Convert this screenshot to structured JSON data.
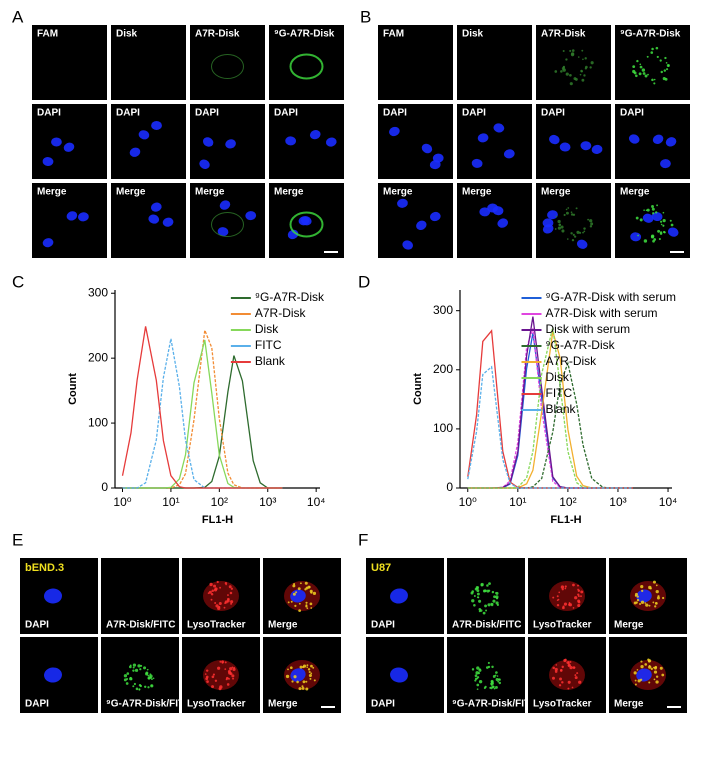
{
  "panels": [
    {
      "label": "A",
      "rows": [
        [
          "FAM",
          "Disk",
          "A7R-Disk",
          "⁹G-A7R-Disk"
        ],
        [
          "DAPI",
          "DAPI",
          "DAPI",
          "DAPI"
        ],
        [
          "Merge",
          "Merge",
          "Merge",
          "Merge"
        ]
      ]
    },
    {
      "label": "B",
      "rows": [
        [
          "FAM",
          "Disk",
          "A7R-Disk",
          "⁹G-A7R-Disk"
        ],
        [
          "DAPI",
          "DAPI",
          "DAPI",
          "DAPI"
        ],
        [
          "Merge",
          "Merge",
          "Merge",
          "Merge"
        ]
      ]
    },
    {
      "label": "E",
      "inset": "bEND.3",
      "rows": [
        [
          "DAPI",
          "A7R-Disk/FITC",
          "LysoTracker",
          "Merge"
        ],
        [
          "DAPI",
          "⁹G-A7R-Disk/FITC",
          "LysoTracker",
          "Merge"
        ]
      ]
    },
    {
      "label": "F",
      "inset": "U87",
      "rows": [
        [
          "DAPI",
          "A7R-Disk/FITC",
          "LysoTracker",
          "Merge"
        ],
        [
          "DAPI",
          "⁹G-A7R-Disk/FITC",
          "LysoTracker",
          "Merge"
        ]
      ]
    }
  ],
  "chart_data": [
    {
      "type": "line",
      "label": "C",
      "x_label": "FL1-H",
      "y_label": "Count",
      "xscale": "log",
      "legend": "upper right",
      "x": [
        1,
        1.5,
        2,
        3,
        5,
        7,
        10,
        15,
        20,
        30,
        50,
        70,
        100,
        150,
        200,
        300,
        500,
        700,
        1000,
        1500,
        2000
      ],
      "xlim": [
        0.7,
        12000
      ],
      "xticks": [
        {
          "value": 1,
          "label": "10⁰"
        },
        {
          "value": 10,
          "label": "10¹"
        },
        {
          "value": 100,
          "label": "10²"
        },
        {
          "value": 1000,
          "label": "10³"
        },
        {
          "value": 10000,
          "label": "10⁴"
        }
      ],
      "ylim": [
        0,
        305
      ],
      "yticks": [
        0,
        100,
        200,
        300
      ],
      "series": [
        {
          "name": "⁹G-A7R-Disk",
          "color": "#2e6b2e",
          "values": [
            0,
            0,
            0,
            0,
            0,
            0,
            0,
            0,
            0,
            0,
            1,
            10,
            49,
            148,
            204,
            165,
            42,
            8,
            0,
            0,
            0
          ]
        },
        {
          "name": "A7R-Disk",
          "color": "#f28c34",
          "values": [
            0,
            0,
            0,
            0,
            0,
            0,
            0,
            5,
            22,
            105,
            243,
            216,
            107,
            23,
            5,
            0,
            0,
            0,
            0,
            0,
            0
          ]
        },
        {
          "name": "Disk",
          "color": "#86d85a",
          "values": [
            0,
            0,
            0,
            0,
            0,
            0,
            1,
            14,
            51,
            162,
            228,
            146,
            51,
            7,
            1,
            0,
            0,
            0,
            0,
            0,
            0
          ]
        },
        {
          "name": "FITC",
          "color": "#5ab0ea",
          "values": [
            0,
            0,
            0,
            8,
            74,
            170,
            230,
            156,
            74,
            13,
            0,
            0,
            0,
            0,
            0,
            0,
            0,
            0,
            0,
            0,
            0
          ]
        },
        {
          "name": "Blank",
          "color": "#e63b3b",
          "values": [
            19,
            85,
            166,
            249,
            166,
            73,
            19,
            2,
            0,
            0,
            0,
            0,
            0,
            0,
            0,
            0,
            0,
            0,
            0,
            0,
            0
          ]
        }
      ]
    },
    {
      "type": "line",
      "label": "D",
      "x_label": "FL1-H",
      "y_label": "Count",
      "xscale": "log",
      "legend": "upper right",
      "x": [
        1,
        1.5,
        2,
        3,
        5,
        7,
        10,
        15,
        20,
        30,
        50,
        70,
        100,
        150,
        200,
        300,
        500,
        700,
        1000,
        1500,
        2000
      ],
      "xlim": [
        0.7,
        12000
      ],
      "xticks": [
        {
          "value": 1,
          "label": "10⁰"
        },
        {
          "value": 10,
          "label": "10¹"
        },
        {
          "value": 100,
          "label": "10²"
        },
        {
          "value": 1000,
          "label": "10³"
        },
        {
          "value": 10000,
          "label": "10⁴"
        }
      ],
      "ylim": [
        0,
        335
      ],
      "yticks": [
        0,
        100,
        200,
        300
      ],
      "series": [
        {
          "name": "⁹G-A7R-Disk with serum",
          "color": "#1f5fd8",
          "values": [
            0,
            0,
            0,
            0,
            0,
            7,
            55,
            202,
            262,
            152,
            17,
            2,
            0,
            0,
            0,
            0,
            0,
            0,
            0,
            0,
            0
          ]
        },
        {
          "name": "A7R-Disk with serum",
          "color": "#e045e0",
          "values": [
            0,
            0,
            0,
            0,
            1,
            12,
            77,
            237,
            270,
            132,
            11,
            1,
            0,
            0,
            0,
            0,
            0,
            0,
            0,
            0,
            0
          ]
        },
        {
          "name": "Disk with serum",
          "color": "#6a1490",
          "values": [
            0,
            0,
            0,
            0,
            1,
            8,
            61,
            223,
            290,
            168,
            19,
            2,
            0,
            0,
            0,
            0,
            0,
            0,
            0,
            0,
            0
          ]
        },
        {
          "name": "⁹G-A7R-Disk",
          "color": "#2e6b2e",
          "values": [
            0,
            0,
            0,
            0,
            0,
            0,
            0,
            0,
            2,
            16,
            95,
            176,
            211,
            142,
            73,
            16,
            1,
            0,
            0,
            0,
            0
          ]
        },
        {
          "name": "A7R-Disk",
          "color": "#f2b030",
          "values": [
            0,
            0,
            0,
            0,
            0,
            0,
            0,
            7,
            30,
            129,
            265,
            220,
            99,
            20,
            4,
            0,
            0,
            0,
            0,
            0,
            0
          ]
        },
        {
          "name": "Disk",
          "color": "#86d85a",
          "values": [
            0,
            0,
            0,
            0,
            0,
            0,
            1,
            17,
            62,
            193,
            272,
            174,
            62,
            9,
            1,
            0,
            0,
            0,
            0,
            0,
            0
          ]
        },
        {
          "name": "FITC",
          "color": "#e63b3b",
          "values": [
            19,
            124,
            248,
            266,
            62,
            10,
            1,
            0,
            0,
            0,
            0,
            0,
            0,
            0,
            0,
            0,
            0,
            0,
            0,
            0,
            0
          ]
        },
        {
          "name": "Blank",
          "color": "#5ab0ea",
          "values": [
            15,
            96,
            192,
            205,
            48,
            8,
            0,
            0,
            0,
            0,
            0,
            0,
            0,
            0,
            0,
            0,
            0,
            0,
            0,
            0,
            0
          ]
        }
      ]
    }
  ]
}
